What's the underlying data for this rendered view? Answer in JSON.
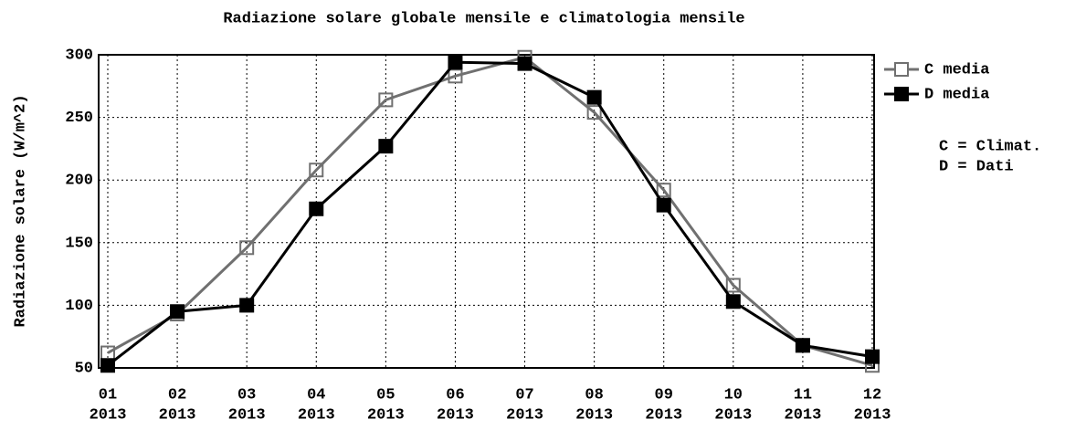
{
  "chart_data": {
    "type": "line",
    "title": "Radiazione solare globale mensile e climatologia mensile",
    "y_label": "Radiazione solare (W/m^2)",
    "categories": [
      [
        "01",
        "2013"
      ],
      [
        "02",
        "2013"
      ],
      [
        "03",
        "2013"
      ],
      [
        "04",
        "2013"
      ],
      [
        "05",
        "2013"
      ],
      [
        "06",
        "2013"
      ],
      [
        "07",
        "2013"
      ],
      [
        "08",
        "2013"
      ],
      [
        "09",
        "2013"
      ],
      [
        "10",
        "2013"
      ],
      [
        "11",
        "2013"
      ],
      [
        "12",
        "2013"
      ]
    ],
    "series": [
      {
        "name": "C media",
        "color": "#707070",
        "marker": "open-square",
        "values": [
          62,
          93,
          146,
          208,
          264,
          283,
          298,
          254,
          192,
          116,
          68,
          52
        ]
      },
      {
        "name": "D media",
        "color": "#000000",
        "marker": "filled-square",
        "values": [
          52,
          95,
          100,
          177,
          227,
          294,
          293,
          266,
          180,
          103,
          68,
          59
        ]
      }
    ],
    "annotations": [
      "C = Climat.",
      "D = Dati"
    ],
    "ylim": [
      50,
      300
    ],
    "yticks": [
      50,
      100,
      150,
      200,
      250,
      300
    ],
    "grid": true,
    "legend": "right"
  }
}
